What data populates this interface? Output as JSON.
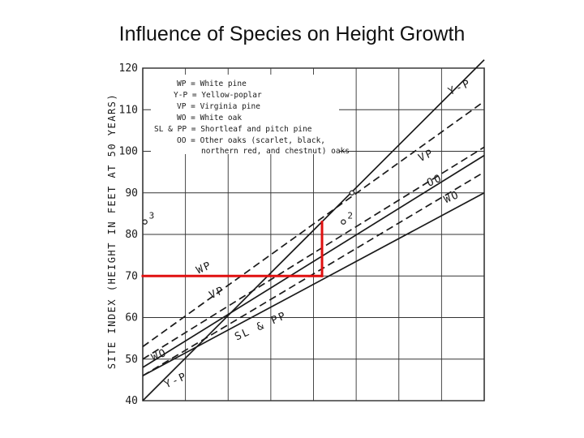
{
  "slide": {
    "title": "Influence of Species on Height Growth"
  },
  "chart_data": {
    "type": "line",
    "title": "Influence of Species on Height Growth",
    "ylabel": "SITE INDEX (HEIGHT IN FEET AT 50 YEARS)",
    "xlabel": "",
    "ylim": [
      40,
      120
    ],
    "xlim": [
      0,
      8
    ],
    "yticks": [
      "40",
      "50",
      "60",
      "70",
      "80",
      "90",
      "100",
      "110",
      "120"
    ],
    "grid": true,
    "legend": [
      "WP = White pine",
      "Y-P = Yellow-poplar",
      "VP = Virginia pine",
      "WO = White oak",
      "SL & PP = Shortleaf and pitch pine",
      "OO = Other oaks (scarlet, black,",
      "northern red, and chestnut) oaks"
    ],
    "series": [
      {
        "name": "Y-P",
        "style": "solid",
        "x": [
          0,
          8
        ],
        "y": [
          40,
          122
        ]
      },
      {
        "name": "WP",
        "style": "dashed",
        "x": [
          0,
          8
        ],
        "y": [
          53,
          112
        ]
      },
      {
        "name": "VP",
        "style": "dashed",
        "x": [
          0,
          8
        ],
        "y": [
          50,
          101
        ]
      },
      {
        "name": "OO",
        "style": "solid",
        "x": [
          0,
          8
        ],
        "y": [
          48,
          99
        ]
      },
      {
        "name": "SL & PP",
        "style": "dashed",
        "x": [
          0,
          8
        ],
        "y": [
          46,
          95
        ]
      },
      {
        "name": "WO",
        "style": "solid",
        "x": [
          0,
          8
        ],
        "y": [
          46,
          90
        ]
      }
    ],
    "line_labels": [
      {
        "text": "Y-P",
        "x": 7.2,
        "y": 113.5
      },
      {
        "text": "WP",
        "x": 1.3,
        "y": 70.5
      },
      {
        "text": "VP",
        "x": 1.6,
        "y": 64.5
      },
      {
        "text": "VP",
        "x": 6.5,
        "y": 97.5
      },
      {
        "text": "OO",
        "x": 6.7,
        "y": 91.5
      },
      {
        "text": "WO",
        "x": 7.1,
        "y": 87.5
      },
      {
        "text": "SL & PP",
        "x": 2.2,
        "y": 54.5
      },
      {
        "text": "WO",
        "x": 0.25,
        "y": 49.5
      },
      {
        "text": "Y-P",
        "x": 0.55,
        "y": 43
      }
    ],
    "points": [
      {
        "label": "3",
        "x": 0.05,
        "y": 83
      },
      {
        "label": "2",
        "x": 4.7,
        "y": 83
      },
      {
        "label": "",
        "x": 4.9,
        "y": 90
      }
    ],
    "highlight_lines": [
      {
        "x": [
          0,
          4.2
        ],
        "y": [
          70,
          70
        ]
      },
      {
        "x": [
          4.2,
          4.2
        ],
        "y": [
          70,
          83
        ]
      }
    ],
    "colors": {
      "highlight": "#e01010",
      "ink": "#1a1a1a",
      "grid": "#333333"
    }
  }
}
